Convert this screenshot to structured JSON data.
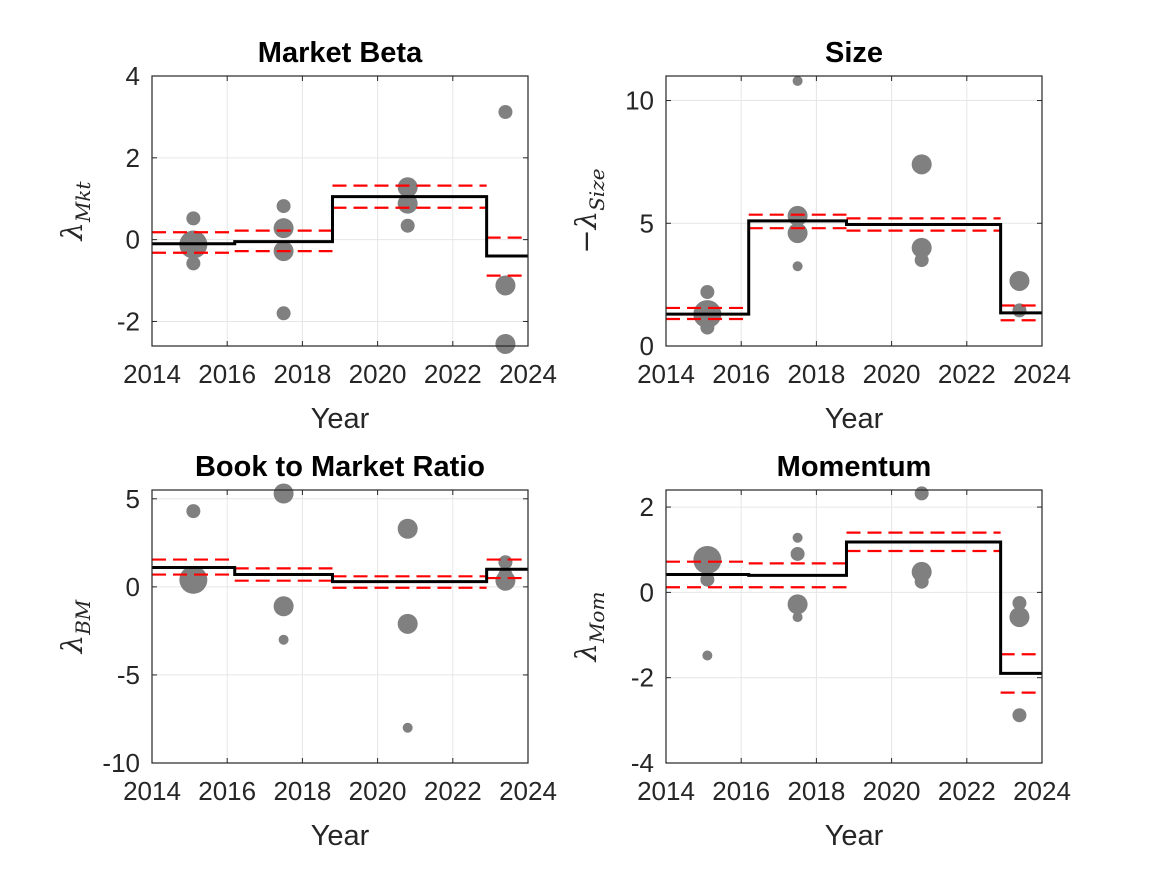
{
  "chart_data": [
    {
      "type": "scatter",
      "title": "Market Beta",
      "xlabel": "Year",
      "ylabel": {
        "prefix": "",
        "symbol": "λ",
        "subscript": "Mkt"
      },
      "xlim": [
        2014,
        2024
      ],
      "ylim": [
        -2.6,
        4
      ],
      "xticks": [
        "2014",
        "2016",
        "2018",
        "2020",
        "2022",
        "2024"
      ],
      "yticks": [
        {
          "value": -2,
          "label": "-2"
        },
        {
          "value": 0,
          "label": "0"
        },
        {
          "value": 2,
          "label": "2"
        },
        {
          "value": 4,
          "label": "4"
        }
      ],
      "grid": true,
      "estimate": {
        "x": [
          2014,
          2016.2,
          2016.2,
          2018.8,
          2018.8,
          2022.9,
          2022.9,
          2024
        ],
        "y": [
          -0.1,
          -0.1,
          -0.05,
          -0.05,
          1.05,
          1.05,
          -0.4,
          -0.4
        ]
      },
      "bands": [
        {
          "x": [
            2014,
            2016.2
          ],
          "upper": 0.18,
          "lower": -0.32
        },
        {
          "x": [
            2016.2,
            2018.8
          ],
          "upper": 0.22,
          "lower": -0.28
        },
        {
          "x": [
            2018.8,
            2022.9
          ],
          "upper": 1.32,
          "lower": 0.78
        },
        {
          "x": [
            2022.9,
            2024
          ],
          "upper": 0.05,
          "lower": -0.88
        }
      ],
      "points": [
        {
          "x": 2015.1,
          "y": 0.52,
          "size": "small"
        },
        {
          "x": 2015.1,
          "y": -0.12,
          "size": "large"
        },
        {
          "x": 2015.1,
          "y": -0.58,
          "size": "small"
        },
        {
          "x": 2017.5,
          "y": 0.82,
          "size": "small"
        },
        {
          "x": 2017.5,
          "y": 0.28,
          "size": "medium"
        },
        {
          "x": 2017.5,
          "y": -0.28,
          "size": "medium"
        },
        {
          "x": 2017.5,
          "y": -1.8,
          "size": "small"
        },
        {
          "x": 2020.8,
          "y": 1.28,
          "size": "medium"
        },
        {
          "x": 2020.8,
          "y": 0.88,
          "size": "medium"
        },
        {
          "x": 2020.8,
          "y": 0.34,
          "size": "small"
        },
        {
          "x": 2023.4,
          "y": 3.12,
          "size": "small"
        },
        {
          "x": 2023.4,
          "y": -1.12,
          "size": "medium"
        },
        {
          "x": 2023.4,
          "y": -2.55,
          "size": "medium"
        }
      ]
    },
    {
      "type": "scatter",
      "title": "Size",
      "xlabel": "Year",
      "ylabel": {
        "prefix": "−",
        "symbol": "λ",
        "subscript": "Size"
      },
      "xlim": [
        2014,
        2024
      ],
      "ylim": [
        0,
        11
      ],
      "xticks": [
        "2014",
        "2016",
        "2018",
        "2020",
        "2022",
        "2024"
      ],
      "yticks": [
        {
          "value": 0,
          "label": "0"
        },
        {
          "value": 5,
          "label": "5"
        },
        {
          "value": 10,
          "label": "10"
        }
      ],
      "grid": true,
      "estimate": {
        "x": [
          2014,
          2016.2,
          2016.2,
          2018.8,
          2018.8,
          2022.9,
          2022.9,
          2024
        ],
        "y": [
          1.3,
          1.3,
          5.1,
          5.1,
          4.95,
          4.95,
          1.35,
          1.35
        ]
      },
      "bands": [
        {
          "x": [
            2014,
            2016.2
          ],
          "upper": 1.55,
          "lower": 1.1
        },
        {
          "x": [
            2016.2,
            2018.8
          ],
          "upper": 5.35,
          "lower": 4.8
        },
        {
          "x": [
            2018.8,
            2022.9
          ],
          "upper": 5.2,
          "lower": 4.7
        },
        {
          "x": [
            2022.9,
            2024
          ],
          "upper": 1.65,
          "lower": 1.05
        }
      ],
      "points": [
        {
          "x": 2015.1,
          "y": 2.2,
          "size": "small"
        },
        {
          "x": 2015.1,
          "y": 1.3,
          "size": "large"
        },
        {
          "x": 2015.1,
          "y": 0.75,
          "size": "small"
        },
        {
          "x": 2017.5,
          "y": 10.8,
          "size": "tiny"
        },
        {
          "x": 2017.5,
          "y": 5.3,
          "size": "medium"
        },
        {
          "x": 2017.5,
          "y": 4.6,
          "size": "medium"
        },
        {
          "x": 2017.5,
          "y": 3.25,
          "size": "tiny"
        },
        {
          "x": 2020.8,
          "y": 7.4,
          "size": "medium"
        },
        {
          "x": 2020.8,
          "y": 4.0,
          "size": "medium"
        },
        {
          "x": 2020.8,
          "y": 3.5,
          "size": "small"
        },
        {
          "x": 2023.4,
          "y": 2.65,
          "size": "medium"
        },
        {
          "x": 2023.4,
          "y": 1.45,
          "size": "small"
        }
      ]
    },
    {
      "type": "scatter",
      "title": "Book to Market Ratio",
      "xlabel": "Year",
      "ylabel": {
        "prefix": "",
        "symbol": "λ",
        "subscript": "BM"
      },
      "xlim": [
        2014,
        2024
      ],
      "ylim": [
        -10,
        5.5
      ],
      "xticks": [
        "2014",
        "2016",
        "2018",
        "2020",
        "2022",
        "2024"
      ],
      "yticks": [
        {
          "value": -10,
          "label": "-10"
        },
        {
          "value": -5,
          "label": "-5"
        },
        {
          "value": 0,
          "label": "0"
        },
        {
          "value": 5,
          "label": "5"
        }
      ],
      "grid": true,
      "estimate": {
        "x": [
          2014,
          2016.2,
          2016.2,
          2018.8,
          2018.8,
          2022.9,
          2022.9,
          2024
        ],
        "y": [
          1.1,
          1.1,
          0.7,
          0.7,
          0.3,
          0.3,
          1.0,
          1.0
        ]
      },
      "bands": [
        {
          "x": [
            2014,
            2016.2
          ],
          "upper": 1.55,
          "lower": 0.7
        },
        {
          "x": [
            2016.2,
            2018.8
          ],
          "upper": 1.05,
          "lower": 0.35
        },
        {
          "x": [
            2018.8,
            2022.9
          ],
          "upper": 0.6,
          "lower": -0.05
        },
        {
          "x": [
            2022.9,
            2024
          ],
          "upper": 1.55,
          "lower": 0.5
        }
      ],
      "points": [
        {
          "x": 2015.1,
          "y": 4.3,
          "size": "small"
        },
        {
          "x": 2015.1,
          "y": 0.4,
          "size": "large"
        },
        {
          "x": 2017.5,
          "y": 5.3,
          "size": "medium"
        },
        {
          "x": 2017.5,
          "y": -1.1,
          "size": "medium"
        },
        {
          "x": 2017.5,
          "y": -3.0,
          "size": "tiny"
        },
        {
          "x": 2020.8,
          "y": 3.3,
          "size": "medium"
        },
        {
          "x": 2020.8,
          "y": -2.1,
          "size": "medium"
        },
        {
          "x": 2020.8,
          "y": -8.0,
          "size": "tiny"
        },
        {
          "x": 2023.4,
          "y": 1.4,
          "size": "small"
        },
        {
          "x": 2023.4,
          "y": 0.7,
          "size": "small"
        },
        {
          "x": 2023.4,
          "y": 0.35,
          "size": "medium"
        }
      ]
    },
    {
      "type": "scatter",
      "title": "Momentum",
      "xlabel": "Year",
      "ylabel": {
        "prefix": "",
        "symbol": "λ",
        "subscript": "Mom"
      },
      "xlim": [
        2014,
        2024
      ],
      "ylim": [
        -4,
        2.4
      ],
      "xticks": [
        "2014",
        "2016",
        "2018",
        "2020",
        "2022",
        "2024"
      ],
      "yticks": [
        {
          "value": -4,
          "label": "-4"
        },
        {
          "value": -2,
          "label": "-2"
        },
        {
          "value": 0,
          "label": "0"
        },
        {
          "value": 2,
          "label": "2"
        }
      ],
      "grid": true,
      "estimate": {
        "x": [
          2014,
          2016.2,
          2016.2,
          2018.8,
          2018.8,
          2022.9,
          2022.9,
          2024
        ],
        "y": [
          0.42,
          0.42,
          0.4,
          0.4,
          1.18,
          1.18,
          -1.9,
          -1.9
        ]
      },
      "bands": [
        {
          "x": [
            2014,
            2016.2
          ],
          "upper": 0.72,
          "lower": 0.12
        },
        {
          "x": [
            2016.2,
            2018.8
          ],
          "upper": 0.68,
          "lower": 0.12
        },
        {
          "x": [
            2018.8,
            2022.9
          ],
          "upper": 1.4,
          "lower": 0.97
        },
        {
          "x": [
            2022.9,
            2024
          ],
          "upper": -1.45,
          "lower": -2.35
        }
      ],
      "points": [
        {
          "x": 2015.1,
          "y": 0.76,
          "size": "large"
        },
        {
          "x": 2015.1,
          "y": 0.3,
          "size": "small"
        },
        {
          "x": 2015.1,
          "y": -1.48,
          "size": "tiny"
        },
        {
          "x": 2017.5,
          "y": 1.28,
          "size": "tiny"
        },
        {
          "x": 2017.5,
          "y": 0.9,
          "size": "small"
        },
        {
          "x": 2017.5,
          "y": -0.28,
          "size": "medium"
        },
        {
          "x": 2017.5,
          "y": -0.58,
          "size": "tiny"
        },
        {
          "x": 2020.8,
          "y": 2.32,
          "size": "small"
        },
        {
          "x": 2020.8,
          "y": 0.48,
          "size": "medium"
        },
        {
          "x": 2020.8,
          "y": 0.25,
          "size": "small"
        },
        {
          "x": 2023.4,
          "y": -0.25,
          "size": "small"
        },
        {
          "x": 2023.4,
          "y": -0.58,
          "size": "medium"
        },
        {
          "x": 2023.4,
          "y": -2.88,
          "size": "small"
        }
      ]
    }
  ],
  "colors": {
    "estimate": "#000000",
    "band": "#ff0000",
    "points": "#808080",
    "grid": "#e6e6e6",
    "axes": "#262626"
  }
}
